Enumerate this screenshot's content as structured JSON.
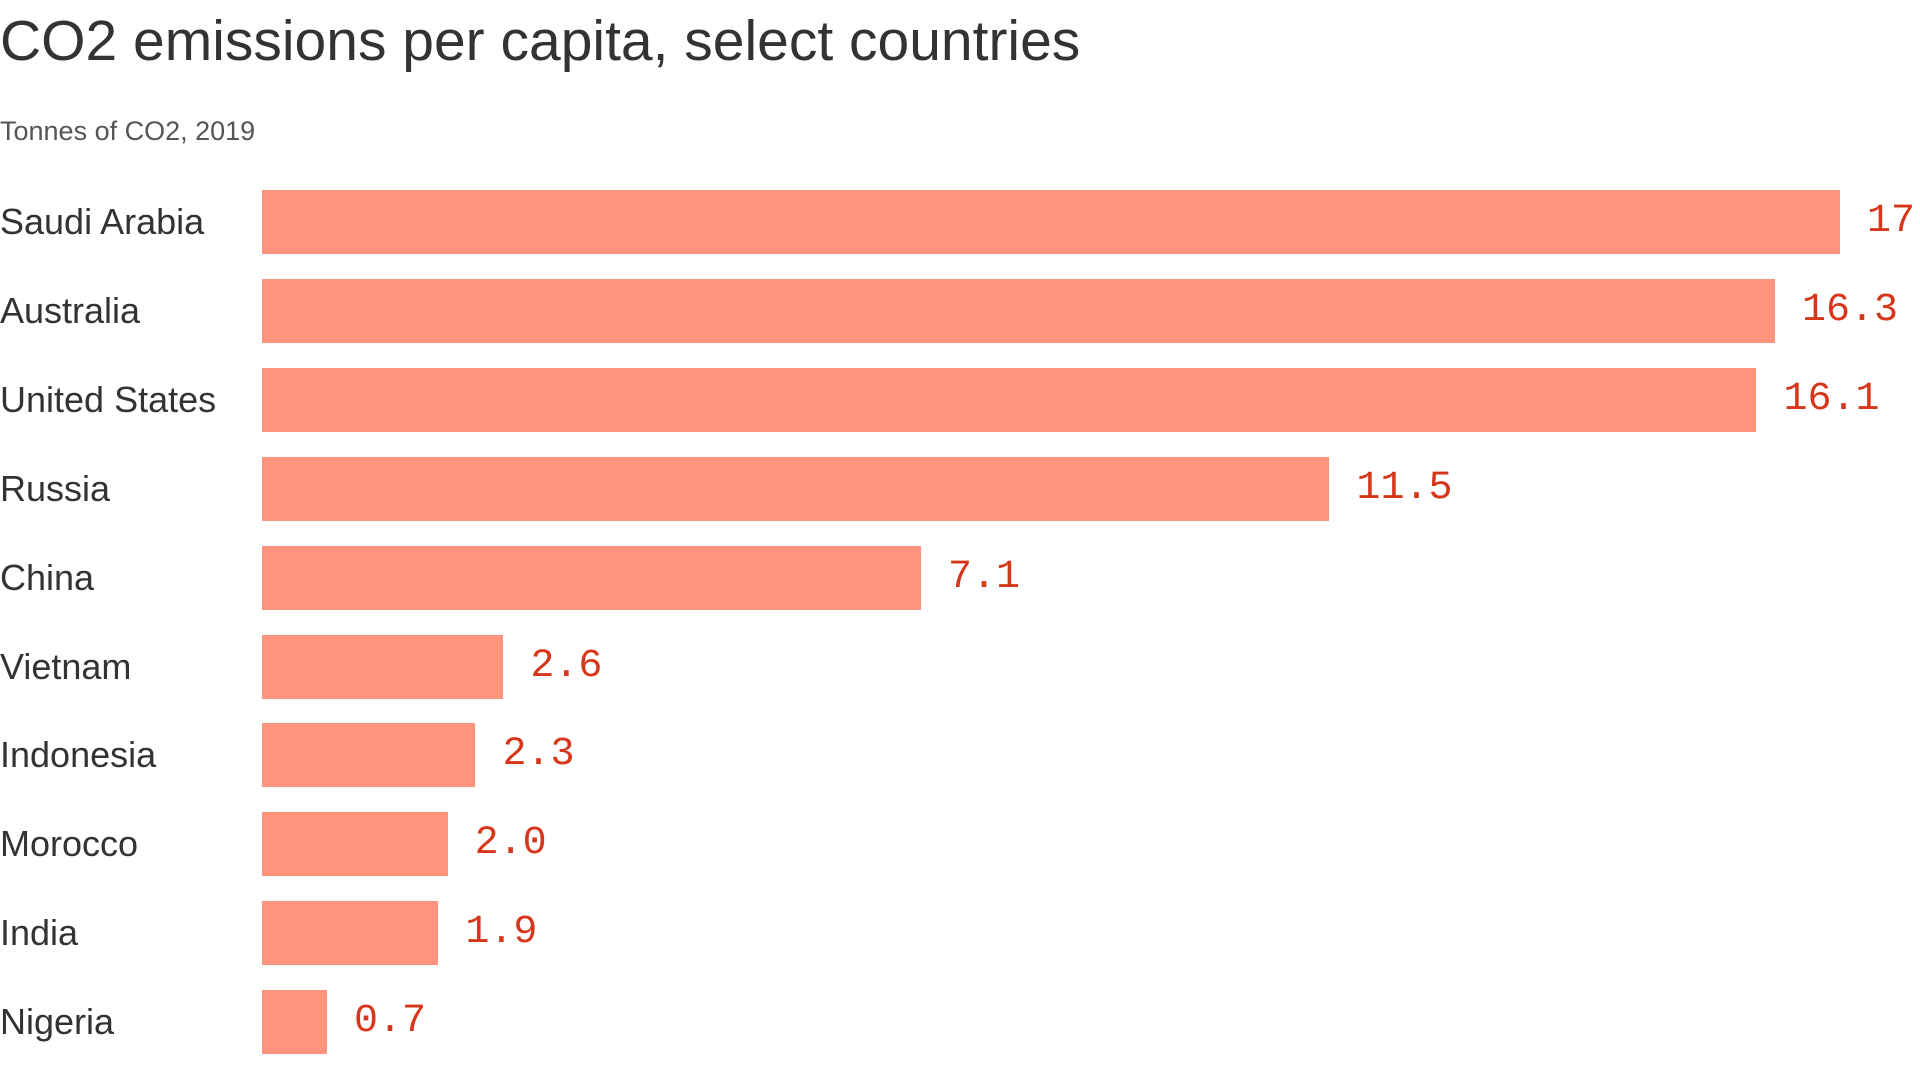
{
  "chart_data": {
    "type": "bar",
    "orientation": "horizontal",
    "title": "CO2 emissions per capita, select countries",
    "subtitle": "Tonnes of CO2, 2019",
    "categories": [
      "Saudi Arabia",
      "Australia",
      "United States",
      "Russia",
      "China",
      "Vietnam",
      "Indonesia",
      "Morocco",
      "India",
      "Nigeria"
    ],
    "values": [
      17,
      16.3,
      16.1,
      11.5,
      7.1,
      2.6,
      2.3,
      2.0,
      1.9,
      0.7
    ],
    "value_labels": [
      "17",
      "16.3",
      "16.1",
      "11.5",
      "7.1",
      "2.6",
      "2.3",
      "2.0",
      "1.9",
      "0.7"
    ],
    "xlim": [
      0,
      17
    ],
    "grid": false,
    "colors": {
      "bar": "#ff937e",
      "value_label": "#d6361a",
      "text": "#333333"
    }
  }
}
